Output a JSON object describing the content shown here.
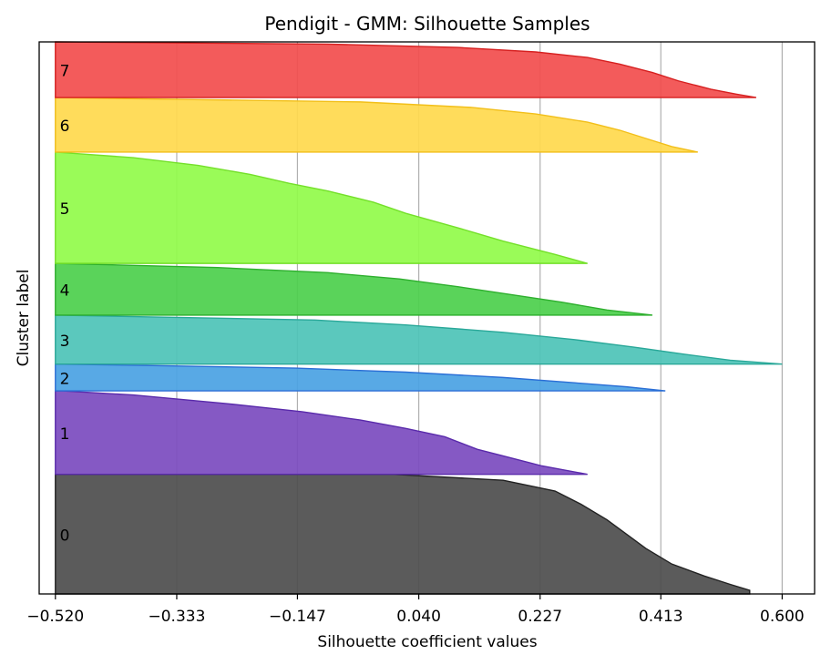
{
  "chart_data": {
    "type": "area",
    "title": "Pendigit - GMM: Silhouette Samples",
    "xlabel": "Silhouette coefficient values",
    "ylabel": "Cluster label",
    "xlim": [
      -0.545,
      0.65
    ],
    "xticks": [
      -0.52,
      -0.333,
      -0.147,
      0.04,
      0.227,
      0.413,
      0.6
    ],
    "xtick_labels": [
      "−0.520",
      "−0.333",
      "−0.147",
      "0.040",
      "0.227",
      "0.413",
      "0.600"
    ],
    "grid": "vertical",
    "baseline": -0.52,
    "clusters": [
      {
        "label": "0",
        "color": "#4d4d4d",
        "edge": "#222222",
        "size": 215,
        "profile": [
          [
            0,
            0.55
          ],
          [
            0.03,
            0.55
          ],
          [
            0.08,
            0.52
          ],
          [
            0.15,
            0.48
          ],
          [
            0.25,
            0.43
          ],
          [
            0.38,
            0.39
          ],
          [
            0.5,
            0.36
          ],
          [
            0.62,
            0.33
          ],
          [
            0.75,
            0.29
          ],
          [
            0.86,
            0.25
          ],
          [
            0.95,
            0.17
          ],
          [
            1,
            0.0
          ]
        ]
      },
      {
        "label": "1",
        "color": "#7b4bbf",
        "edge": "#5a2bab",
        "size": 150,
        "profile": [
          [
            0,
            0.3
          ],
          [
            0.1,
            0.23
          ],
          [
            0.2,
            0.18
          ],
          [
            0.3,
            0.13
          ],
          [
            0.45,
            0.08
          ],
          [
            0.55,
            0.02
          ],
          [
            0.65,
            -0.05
          ],
          [
            0.75,
            -0.14
          ],
          [
            0.85,
            -0.26
          ],
          [
            0.95,
            -0.4
          ],
          [
            1,
            -0.51
          ]
        ]
      },
      {
        "label": "2",
        "color": "#4aa2e3",
        "edge": "#2b6fd6",
        "size": 48,
        "profile": [
          [
            0,
            0.42
          ],
          [
            0.15,
            0.36
          ],
          [
            0.3,
            0.28
          ],
          [
            0.5,
            0.17
          ],
          [
            0.7,
            0.02
          ],
          [
            0.85,
            -0.15
          ],
          [
            0.95,
            -0.38
          ],
          [
            1,
            -0.52
          ]
        ]
      },
      {
        "label": "3",
        "color": "#4dc3b7",
        "edge": "#2aa899",
        "size": 88,
        "profile": [
          [
            0,
            0.6
          ],
          [
            0.08,
            0.52
          ],
          [
            0.2,
            0.45
          ],
          [
            0.35,
            0.37
          ],
          [
            0.5,
            0.28
          ],
          [
            0.65,
            0.17
          ],
          [
            0.8,
            0.02
          ],
          [
            0.9,
            -0.12
          ],
          [
            1,
            -0.52
          ]
        ]
      },
      {
        "label": "4",
        "color": "#4ccf4c",
        "edge": "#2eaf2e",
        "size": 93,
        "profile": [
          [
            0,
            0.4
          ],
          [
            0.1,
            0.33
          ],
          [
            0.25,
            0.26
          ],
          [
            0.4,
            0.18
          ],
          [
            0.55,
            0.1
          ],
          [
            0.7,
            0.01
          ],
          [
            0.82,
            -0.1
          ],
          [
            0.92,
            -0.27
          ],
          [
            1,
            -0.52
          ]
        ]
      },
      {
        "label": "5",
        "color": "#91fb4a",
        "edge": "#74e02a",
        "size": 200,
        "profile": [
          [
            0,
            0.3
          ],
          [
            0.08,
            0.25
          ],
          [
            0.2,
            0.17
          ],
          [
            0.32,
            0.1
          ],
          [
            0.45,
            0.02
          ],
          [
            0.55,
            -0.03
          ],
          [
            0.65,
            -0.1
          ],
          [
            0.72,
            -0.16
          ],
          [
            0.8,
            -0.22
          ],
          [
            0.88,
            -0.3
          ],
          [
            0.95,
            -0.4
          ],
          [
            1,
            -0.52
          ]
        ]
      },
      {
        "label": "6",
        "color": "#ffd94d",
        "edge": "#f2bf1a",
        "size": 98,
        "profile": [
          [
            0,
            0.47
          ],
          [
            0.1,
            0.43
          ],
          [
            0.25,
            0.39
          ],
          [
            0.4,
            0.35
          ],
          [
            0.55,
            0.3
          ],
          [
            0.7,
            0.22
          ],
          [
            0.82,
            0.12
          ],
          [
            0.92,
            -0.05
          ],
          [
            1,
            -0.52
          ]
        ]
      },
      {
        "label": "7",
        "color": "#f24d4d",
        "edge": "#d62020",
        "size": 100,
        "profile": [
          [
            0,
            0.56
          ],
          [
            0.06,
            0.53
          ],
          [
            0.15,
            0.49
          ],
          [
            0.3,
            0.44
          ],
          [
            0.45,
            0.4
          ],
          [
            0.6,
            0.35
          ],
          [
            0.72,
            0.3
          ],
          [
            0.82,
            0.22
          ],
          [
            0.9,
            0.1
          ],
          [
            0.96,
            -0.1
          ],
          [
            1,
            -0.52
          ]
        ]
      }
    ]
  }
}
